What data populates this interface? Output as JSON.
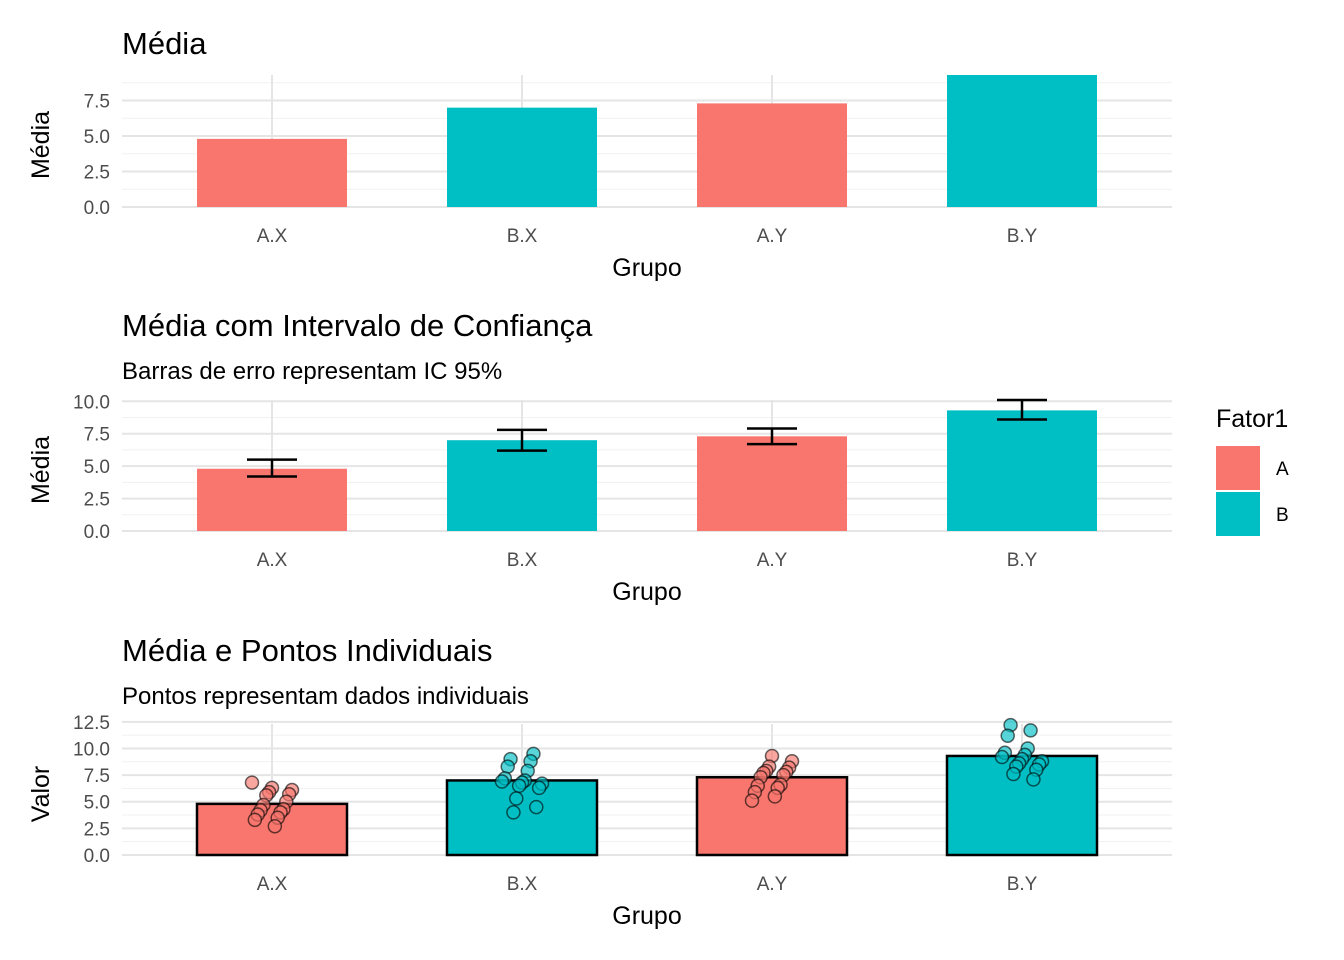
{
  "colors": {
    "A": "#F8766D",
    "B": "#00BFC4"
  },
  "legend": {
    "title": "Fator1",
    "entries": [
      {
        "label": "A",
        "color": "#F8766D"
      },
      {
        "label": "B",
        "color": "#00BFC4"
      }
    ]
  },
  "chart_data": [
    {
      "type": "bar",
      "title": "Média",
      "subtitle": "",
      "xlabel": "Grupo",
      "ylabel": "Média",
      "categories": [
        "A.X",
        "B.X",
        "A.Y",
        "B.Y"
      ],
      "fill_group": [
        "A",
        "B",
        "A",
        "B"
      ],
      "values": [
        4.8,
        7.0,
        7.3,
        9.3
      ],
      "ylim": [
        0,
        9.3
      ],
      "yticks": [
        0.0,
        2.5,
        5.0,
        7.5
      ],
      "ytick_labels": [
        "0.0",
        "2.5",
        "5.0",
        "7.5"
      ],
      "grid": true
    },
    {
      "type": "bar",
      "title": "Média com Intervalo de Confiança",
      "subtitle": "Barras de erro representam IC 95%",
      "xlabel": "Grupo",
      "ylabel": "Média",
      "categories": [
        "A.X",
        "B.X",
        "A.Y",
        "B.Y"
      ],
      "fill_group": [
        "A",
        "B",
        "A",
        "B"
      ],
      "values": [
        4.8,
        7.0,
        7.3,
        9.3
      ],
      "ci_lower": [
        4.2,
        6.2,
        6.7,
        8.6
      ],
      "ci_upper": [
        5.5,
        7.8,
        7.9,
        10.1
      ],
      "ylim": [
        0,
        10.1
      ],
      "yticks": [
        0.0,
        2.5,
        5.0,
        7.5,
        10.0
      ],
      "ytick_labels": [
        "0.0",
        "2.5",
        "5.0",
        "7.5",
        "10.0"
      ],
      "grid": true,
      "legend": "right"
    },
    {
      "type": "bar",
      "title": "Média e Pontos Individuais",
      "subtitle": "Pontos representam dados individuais",
      "xlabel": "Grupo",
      "ylabel": "Valor",
      "categories": [
        "A.X",
        "B.X",
        "A.Y",
        "B.Y"
      ],
      "fill_group": [
        "A",
        "B",
        "A",
        "B"
      ],
      "values": [
        4.8,
        7.0,
        7.3,
        9.3
      ],
      "ylim": [
        0,
        12.3
      ],
      "yticks": [
        0.0,
        2.5,
        5.0,
        7.5,
        10.0,
        12.5
      ],
      "ytick_labels": [
        "0.0",
        "2.5",
        "5.0",
        "7.5",
        "10.0",
        "12.5"
      ],
      "grid": true,
      "points": [
        {
          "group": "A.X",
          "values": [
            6.8,
            6.3,
            6.1,
            5.9,
            5.7,
            5.6,
            5.0,
            4.7,
            4.3,
            4.2,
            4.0,
            3.8,
            3.5,
            3.3,
            2.7
          ]
        },
        {
          "group": "B.X",
          "values": [
            9.5,
            9.0,
            8.8,
            8.3,
            7.9,
            7.2,
            7.0,
            6.9,
            6.8,
            6.7,
            6.5,
            6.3,
            5.3,
            4.5,
            4.0
          ]
        },
        {
          "group": "A.Y",
          "values": [
            9.3,
            8.8,
            8.3,
            8.2,
            7.9,
            7.8,
            7.7,
            7.5,
            7.3,
            6.6,
            6.5,
            6.3,
            5.9,
            5.5,
            5.1
          ]
        },
        {
          "group": "B.Y",
          "values": [
            12.2,
            11.7,
            11.2,
            10.0,
            9.6,
            9.4,
            9.2,
            9.0,
            8.8,
            8.6,
            8.5,
            8.3,
            8.0,
            7.6,
            7.1
          ]
        }
      ]
    }
  ]
}
